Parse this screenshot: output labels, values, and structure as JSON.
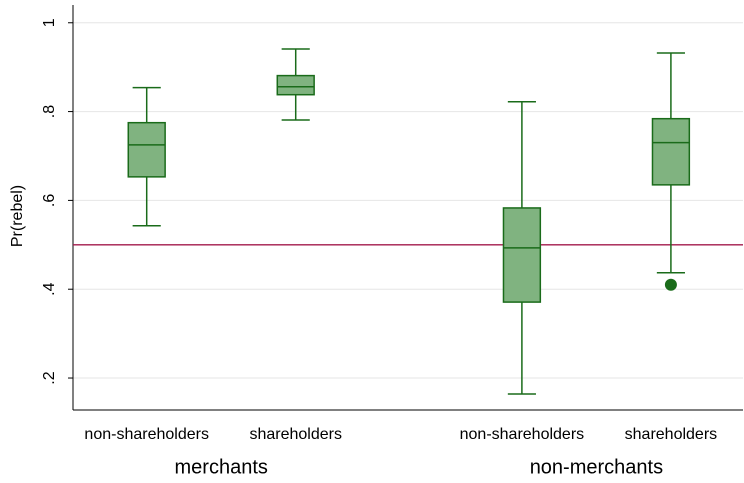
{
  "chart_data": {
    "type": "box",
    "y_label": "Pr(rebel)",
    "groups": [
      "merchants",
      "non-merchants"
    ],
    "categories": [
      "non-shareholders",
      "shareholders",
      "non-shareholders",
      "shareholders"
    ],
    "boxes": [
      {
        "min": 0.543,
        "q1": 0.653,
        "median": 0.725,
        "q3": 0.775,
        "max": 0.854
      },
      {
        "min": 0.781,
        "q1": 0.838,
        "median": 0.856,
        "q3": 0.881,
        "max": 0.941
      },
      {
        "min": 0.164,
        "q1": 0.371,
        "median": 0.493,
        "q3": 0.583,
        "max": 0.822
      },
      {
        "min": 0.437,
        "q1": 0.635,
        "median": 0.73,
        "q3": 0.784,
        "max": 0.932,
        "outliers": [
          0.41
        ]
      }
    ],
    "reference_line": 0.5,
    "reference_color": "#a3194b",
    "box_color": "#80b380",
    "line_color": "#1a6b1a",
    "ylim": [
      0.128,
      1.04
    ],
    "yticks": [
      {
        "value": 0.2,
        "label": ".2"
      },
      {
        "value": 0.4,
        "label": ".4"
      },
      {
        "value": 0.6,
        "label": ".6"
      },
      {
        "value": 0.8,
        "label": ".8"
      },
      1
    ],
    "grid": true
  }
}
